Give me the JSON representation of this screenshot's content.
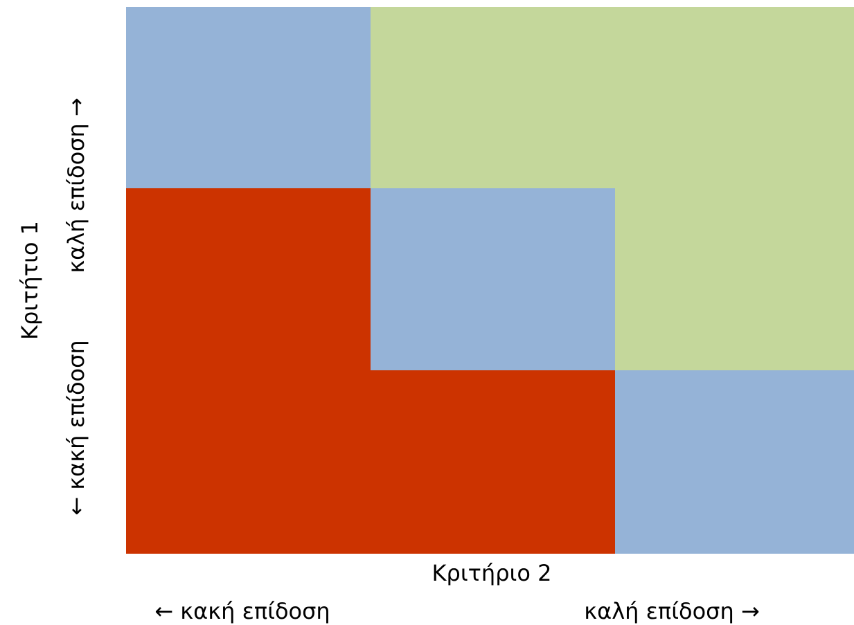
{
  "y_axis": {
    "title": "Κριτήτιο 1",
    "low_label": "← κακή επίδοση",
    "high_label": "καλή επίδοση →"
  },
  "x_axis": {
    "title": "Κριτήριο 2",
    "low_label": "← κακή επίδοση",
    "high_label": "καλή επίδοση →"
  }
}
